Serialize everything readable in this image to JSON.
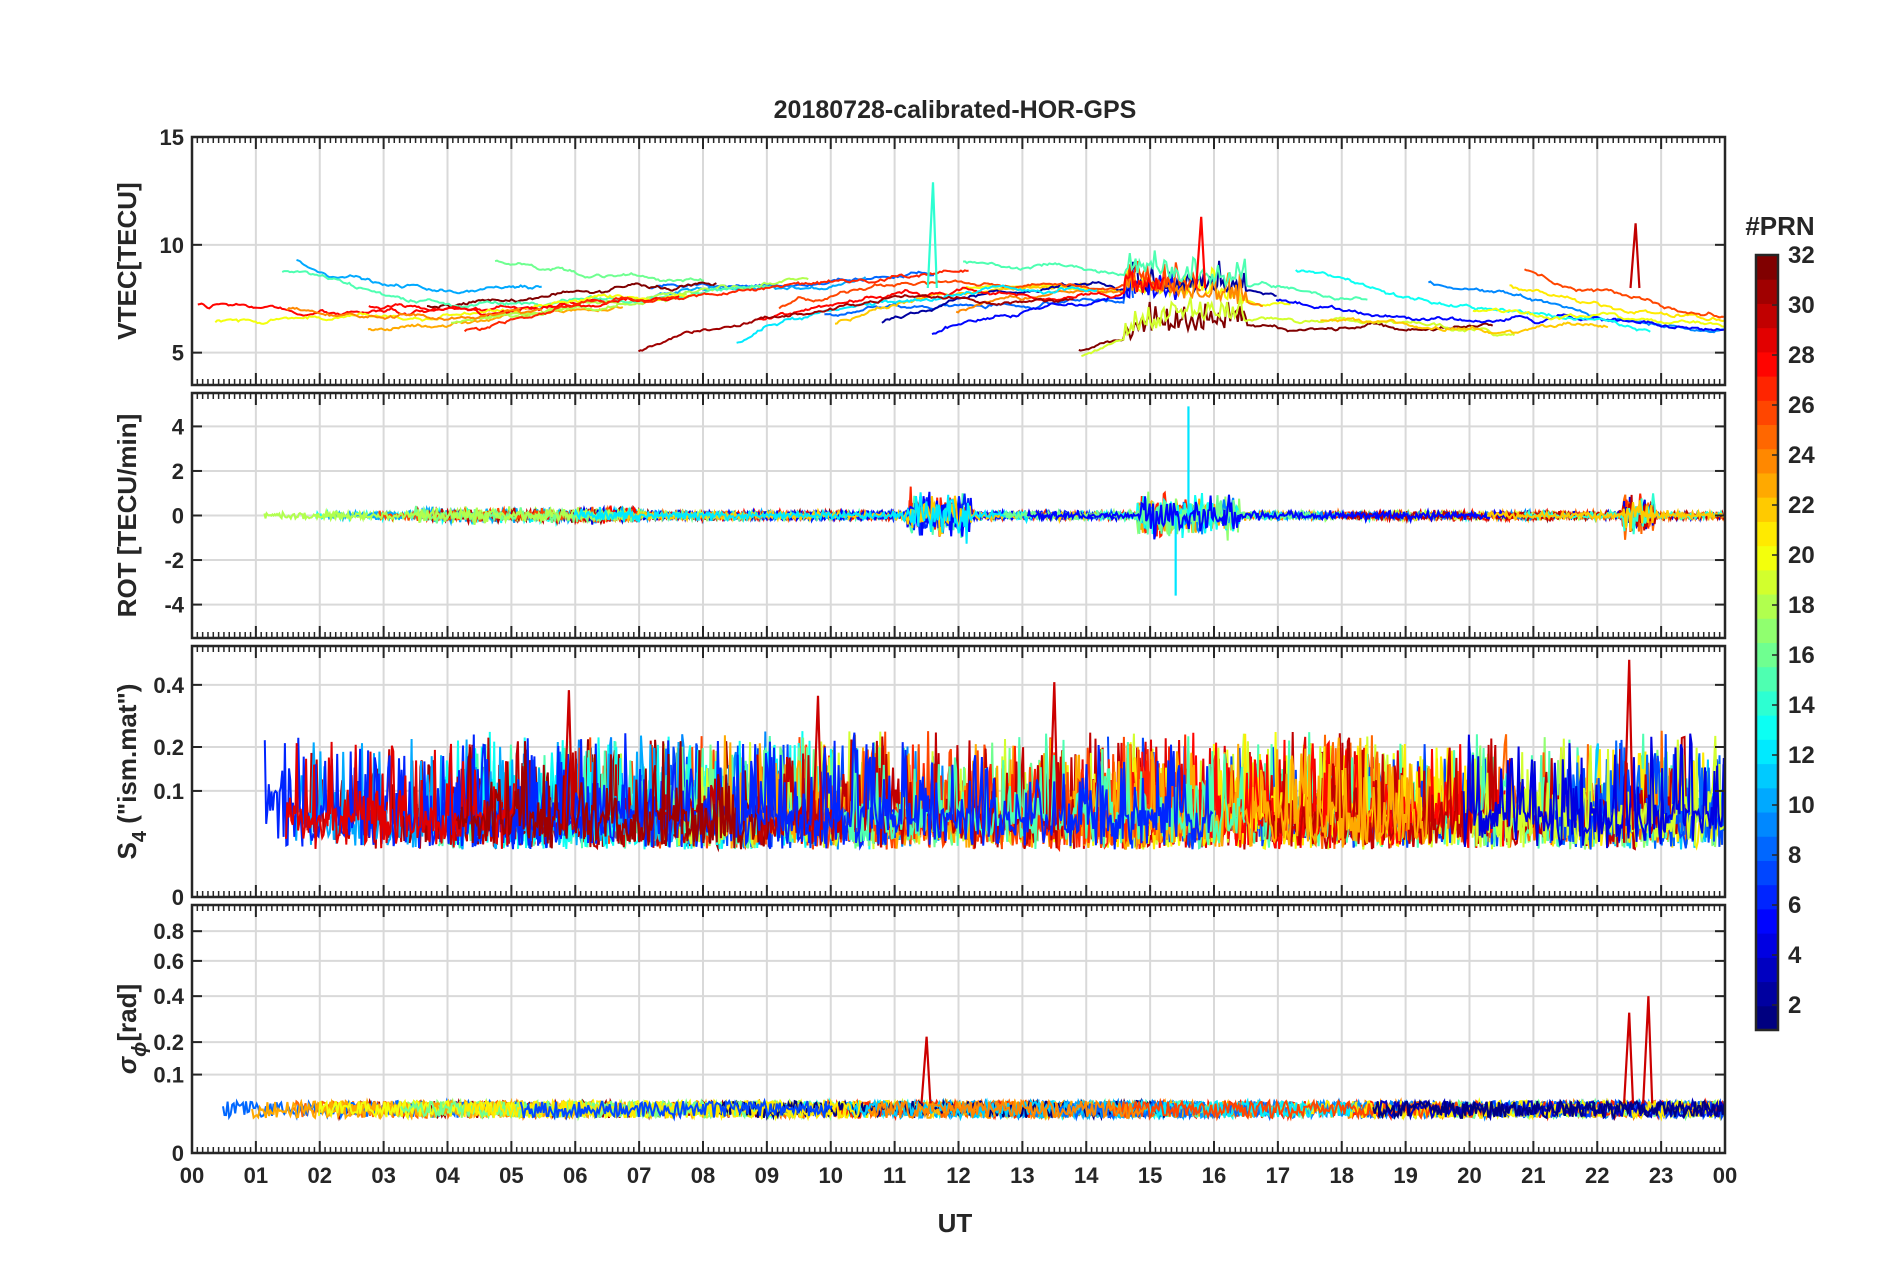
{
  "chart_data": {
    "type": "line",
    "title": "20180728-calibrated-HOR-GPS",
    "xlabel": "UT",
    "x_tick_labels": [
      "00",
      "01",
      "02",
      "03",
      "04",
      "05",
      "06",
      "07",
      "08",
      "09",
      "10",
      "11",
      "12",
      "13",
      "14",
      "15",
      "16",
      "17",
      "18",
      "19",
      "20",
      "21",
      "22",
      "23",
      "00"
    ],
    "xlim_hours": [
      0,
      24
    ],
    "grid": true,
    "colorbar": {
      "label": "#PRN",
      "range": [
        1,
        32
      ],
      "ticks": [
        2,
        4,
        6,
        8,
        10,
        12,
        14,
        16,
        18,
        20,
        22,
        24,
        26,
        28,
        30,
        32
      ],
      "tick_labels": [
        "2",
        "4",
        "6",
        "8",
        "10",
        "12",
        "14",
        "16",
        "18",
        "20",
        "22",
        "24",
        "26",
        "28",
        "30",
        "32"
      ],
      "colormap": "jet",
      "placement": "right"
    },
    "panels": [
      {
        "id": "vtec",
        "ylabel": "VTEC[TECU]",
        "ylim": [
          3.5,
          15
        ],
        "yticks": [
          5,
          10,
          15
        ],
        "ytick_labels": [
          "5",
          "10",
          "15"
        ],
        "features": {
          "baseline_range": [
            4.5,
            9.5
          ],
          "peaks": [
            {
              "time_h": 11.6,
              "value": 12.9,
              "prn": 14
            },
            {
              "time_h": 15.8,
              "value": 11.3,
              "prn": 28
            },
            {
              "time_h": 22.6,
              "value": 11.0,
              "prn": 30
            }
          ]
        }
      },
      {
        "id": "rot",
        "ylabel": "ROT [TECU/min]",
        "ylim": [
          -5.5,
          5.5
        ],
        "yticks": [
          -4,
          -2,
          0,
          2,
          4
        ],
        "ytick_labels": [
          "-4",
          "-2",
          "0",
          "2",
          "4"
        ],
        "features": {
          "max": 4.9,
          "max_time_h": 15.6,
          "min": -3.6,
          "min_time_h": 15.4,
          "active_windows_h": [
            [
              11.2,
              12.2
            ],
            [
              14.8,
              16.4
            ],
            [
              22.4,
              22.9
            ]
          ]
        }
      },
      {
        "id": "s4",
        "ylabel_main": "S",
        "ylabel_sub": "4",
        "ylabel_tail": " (\"ism.mat\")",
        "ylim": [
          0,
          0.56
        ],
        "ytick_values": [
          0,
          0.1,
          0.2,
          0.4
        ],
        "ytick_labels": [
          "0",
          "0.1",
          "0.2",
          "0.4"
        ],
        "features": {
          "baseline_range": [
            0.02,
            0.1
          ],
          "peaks": [
            {
              "time_h": 5.9,
              "value": 0.38
            },
            {
              "time_h": 9.8,
              "value": 0.36
            },
            {
              "time_h": 13.5,
              "value": 0.41
            },
            {
              "time_h": 22.5,
              "value": 0.5
            }
          ]
        }
      },
      {
        "id": "sigma_phi",
        "ylabel_main": "σ",
        "ylabel_sub": "ϕ",
        "ylabel_tail": "[rad]",
        "ylim": [
          0,
          1
        ],
        "ytick_values": [
          0,
          0.1,
          0.2,
          0.4,
          0.6,
          0.8
        ],
        "ytick_labels": [
          "0",
          "0.1",
          "0.2",
          "0.4",
          "0.6",
          "0.8"
        ],
        "features": {
          "baseline_range": [
            0.02,
            0.06
          ],
          "peaks": [
            {
              "time_h": 11.5,
              "value": 0.22
            },
            {
              "time_h": 22.5,
              "value": 0.32
            },
            {
              "time_h": 22.8,
              "value": 0.4
            }
          ]
        }
      }
    ]
  }
}
